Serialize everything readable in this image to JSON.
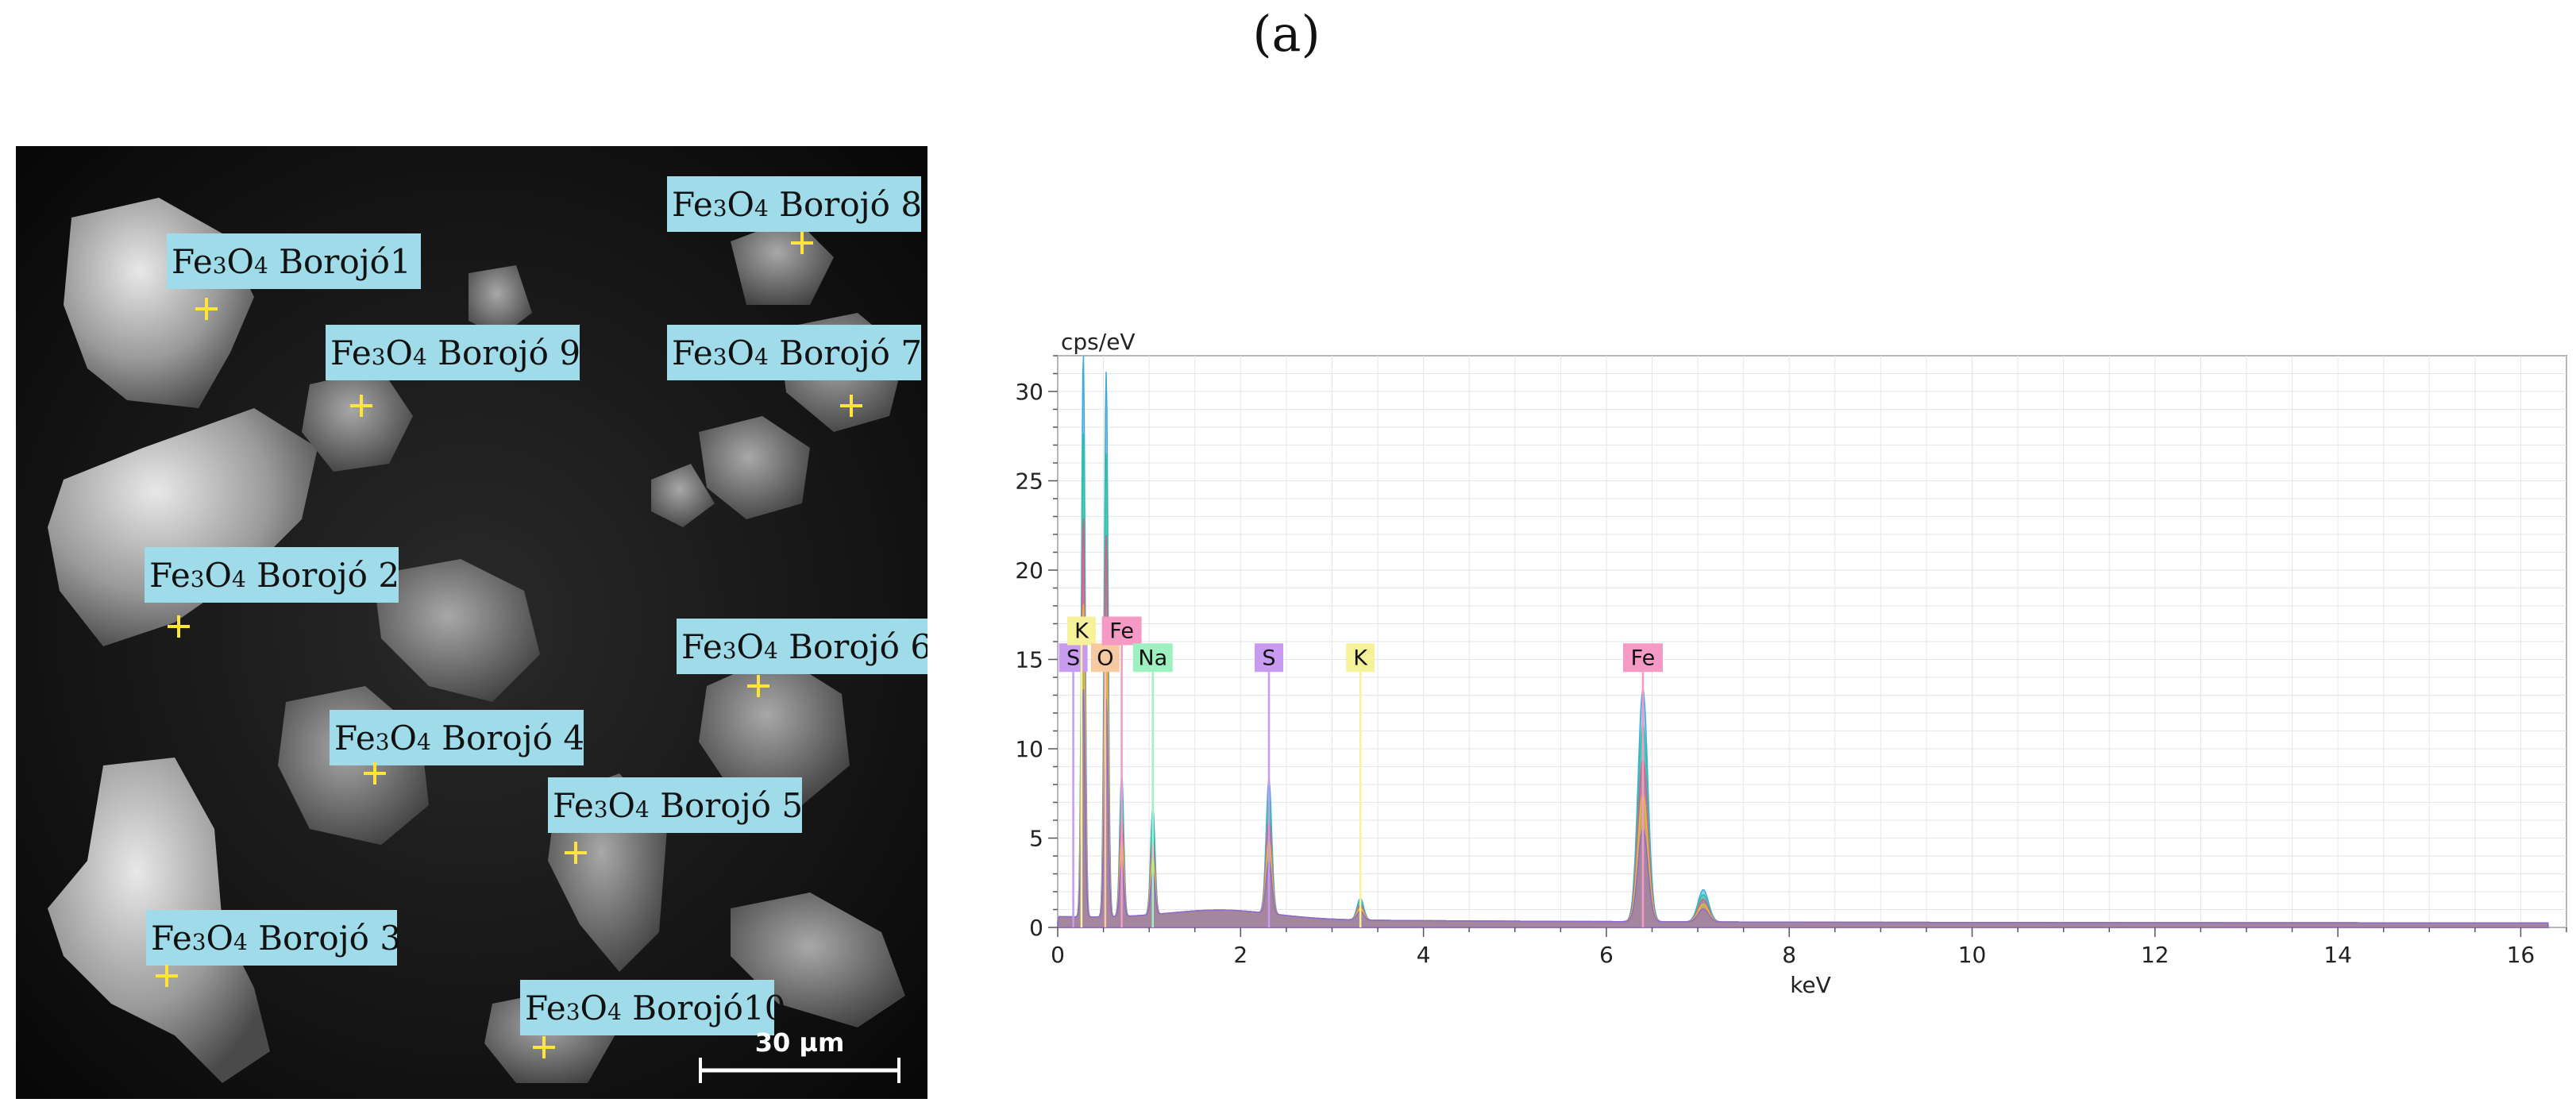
{
  "figure_label": "(a)",
  "sem_image": {
    "scale_bar_label": "30 µm",
    "label_background_color": "#9fdbe8",
    "crosshair_color": "#ffe53a",
    "points": [
      {
        "prefix": "Fe",
        "sub1": "3",
        "mid": "O",
        "sub2": "4",
        "name": " Borojó1"
      },
      {
        "prefix": "Fe",
        "sub1": "3",
        "mid": "O",
        "sub2": "4",
        "name": " Borojó 2"
      },
      {
        "prefix": "Fe",
        "sub1": "3",
        "mid": "O",
        "sub2": "4",
        "name": " Borojó 3"
      },
      {
        "prefix": "Fe",
        "sub1": "3",
        "mid": "O",
        "sub2": "4",
        "name": " Borojó 4"
      },
      {
        "prefix": "Fe",
        "sub1": "3",
        "mid": "O",
        "sub2": "4",
        "name": " Borojó 5"
      },
      {
        "prefix": "Fe",
        "sub1": "3",
        "mid": "O",
        "sub2": "4",
        "name": " Borojó 6"
      },
      {
        "prefix": "Fe",
        "sub1": "3",
        "mid": "O",
        "sub2": "4",
        "name": " Borojó 7"
      },
      {
        "prefix": "Fe",
        "sub1": "3",
        "mid": "O",
        "sub2": "4",
        "name": " Borojó 8"
      },
      {
        "prefix": "Fe",
        "sub1": "3",
        "mid": "O",
        "sub2": "4",
        "name": " Borojó 9"
      },
      {
        "prefix": "Fe",
        "sub1": "3",
        "mid": "O",
        "sub2": "4",
        "name": " Borojó10"
      }
    ]
  },
  "chart_data": {
    "type": "line",
    "title": "",
    "xlabel": "keV",
    "ylabel": "cps/eV",
    "xlim": [
      0,
      16.5
    ],
    "ylim": [
      0,
      32
    ],
    "x_ticks": [
      0,
      2,
      4,
      6,
      8,
      10,
      12,
      14,
      16
    ],
    "y_ticks": [
      0,
      5,
      10,
      15,
      20,
      25,
      30
    ],
    "grid": true,
    "series_colors": [
      "#3fa9e0",
      "#2ec4a0",
      "#e05a8a",
      "#e0c030",
      "#8a6ad0"
    ],
    "peaks": [
      {
        "x": 0.28,
        "y": 32
      },
      {
        "x": 0.53,
        "y": 30.5
      },
      {
        "x": 0.7,
        "y": 8
      },
      {
        "x": 1.04,
        "y": 6
      },
      {
        "x": 2.31,
        "y": 7.5
      },
      {
        "x": 3.31,
        "y": 1.2
      },
      {
        "x": 6.4,
        "y": 13
      },
      {
        "x": 7.06,
        "y": 1.8
      }
    ],
    "element_markers": [
      {
        "label": "S",
        "x": 0.17,
        "row": 1,
        "color": "#c89af0"
      },
      {
        "label": "K",
        "x": 0.26,
        "row": 0,
        "color": "#f5f29a"
      },
      {
        "label": "O",
        "x": 0.52,
        "row": 1,
        "color": "#f7c9a0"
      },
      {
        "label": "Fe",
        "x": 0.7,
        "row": 0,
        "color": "#f49ac4"
      },
      {
        "label": "Na",
        "x": 1.04,
        "row": 1,
        "color": "#9ff0c0"
      },
      {
        "label": "S",
        "x": 2.31,
        "row": 1,
        "color": "#c89af0"
      },
      {
        "label": "K",
        "x": 3.31,
        "row": 1,
        "color": "#f5f29a"
      },
      {
        "label": "Fe",
        "x": 6.4,
        "row": 1,
        "color": "#f49ac4"
      }
    ]
  }
}
